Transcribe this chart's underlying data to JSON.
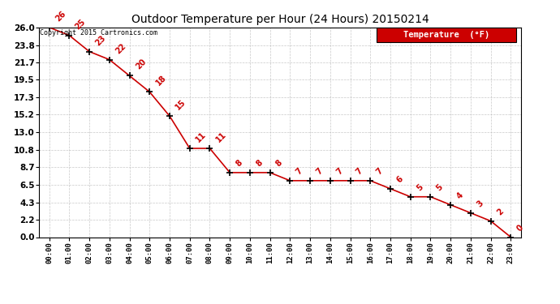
{
  "title": "Outdoor Temperature per Hour (24 Hours) 20150214",
  "copyright_text": "Copyright 2015 Cartronics.com",
  "legend_label": "Temperature  (°F)",
  "hours": [
    0,
    1,
    2,
    3,
    4,
    5,
    6,
    7,
    8,
    9,
    10,
    11,
    12,
    13,
    14,
    15,
    16,
    17,
    18,
    19,
    20,
    21,
    22,
    23
  ],
  "hour_labels": [
    "00:00",
    "01:00",
    "02:00",
    "03:00",
    "04:00",
    "05:00",
    "06:00",
    "07:00",
    "08:00",
    "09:00",
    "10:00",
    "11:00",
    "12:00",
    "13:00",
    "14:00",
    "15:00",
    "16:00",
    "17:00",
    "18:00",
    "19:00",
    "20:00",
    "21:00",
    "22:00",
    "23:00"
  ],
  "temperatures": [
    26,
    25,
    23,
    22,
    20,
    18,
    15,
    11,
    11,
    8,
    8,
    8,
    7,
    7,
    7,
    7,
    7,
    6,
    5,
    5,
    4,
    3,
    2,
    0
  ],
  "ylim": [
    0.0,
    26.0
  ],
  "yticks": [
    0.0,
    2.2,
    4.3,
    6.5,
    8.7,
    10.8,
    13.0,
    15.2,
    17.3,
    19.5,
    21.7,
    23.8,
    26.0
  ],
  "ytick_labels": [
    "0.0",
    "2.2",
    "4.3",
    "6.5",
    "8.7",
    "10.8",
    "13.0",
    "15.2",
    "17.3",
    "19.5",
    "21.7",
    "23.8",
    "26.0"
  ],
  "line_color": "#cc0000",
  "marker_color": "#000000",
  "label_color": "#cc0000",
  "bg_color": "#ffffff",
  "grid_color": "#bbbbbb",
  "legend_bg": "#cc0000",
  "legend_fg": "#ffffff"
}
